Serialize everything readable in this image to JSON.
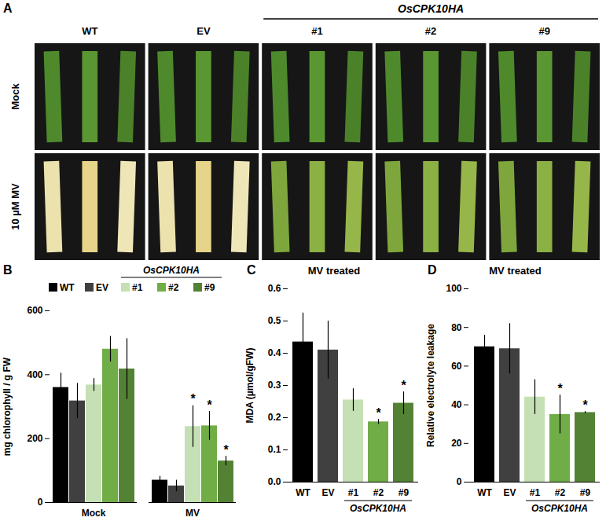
{
  "photo_panel": {
    "panel_label": "A",
    "columns": [
      "WT",
      "EV",
      "#1",
      "#2",
      "#9"
    ],
    "group": {
      "label": "OsCPK10HA",
      "members": [
        "#1",
        "#2",
        "#9"
      ]
    },
    "rows": [
      "Mock",
      "10 µM MV"
    ]
  },
  "chart_data": [
    {
      "panel_label": "B",
      "type": "bar",
      "categories": [
        "Mock",
        "MV"
      ],
      "series": [
        {
          "name": "WT",
          "color": "#000000",
          "values": [
            360,
            70
          ],
          "errors": [
            45,
            12
          ]
        },
        {
          "name": "EV",
          "color": "#404040",
          "values": [
            318,
            52
          ],
          "errors": [
            55,
            18
          ]
        },
        {
          "name": "#1",
          "color": "#c5e0b4",
          "values": [
            368,
            238
          ],
          "errors": [
            20,
            65
          ]
        },
        {
          "name": "#2",
          "color": "#70ad47",
          "values": [
            480,
            240
          ],
          "errors": [
            40,
            45
          ]
        },
        {
          "name": "#9",
          "color": "#548235",
          "values": [
            418,
            130
          ],
          "errors": [
            95,
            15
          ]
        }
      ],
      "group": {
        "label": "OsCPK10HA",
        "members": [
          "#1",
          "#2",
          "#9"
        ]
      },
      "ylabel": "mg chlorophyll / g FW",
      "ylim": [
        0,
        600
      ],
      "yticks": [
        0,
        200,
        400,
        600
      ],
      "grid": false,
      "legend": "top",
      "annotations": [
        {
          "category": "MV",
          "series": "#1",
          "text": "*"
        },
        {
          "category": "MV",
          "series": "#2",
          "text": "*"
        },
        {
          "category": "MV",
          "series": "#9",
          "text": "*"
        }
      ]
    },
    {
      "panel_label": "C",
      "type": "bar",
      "title": "MV treated",
      "categories": [
        "WT",
        "EV",
        "#1",
        "#2",
        "#9"
      ],
      "values": [
        0.435,
        0.41,
        0.255,
        0.187,
        0.245
      ],
      "errors": [
        0.09,
        0.09,
        0.035,
        0.008,
        0.035
      ],
      "colors": [
        "#000000",
        "#404040",
        "#c5e0b4",
        "#70ad47",
        "#548235"
      ],
      "group": {
        "label": "OsCPK10HA",
        "members": [
          "#1",
          "#2",
          "#9"
        ]
      },
      "ylabel": "MDA (µmol/gFW)",
      "ylim": [
        0,
        0.6
      ],
      "yticks": [
        {
          "value": 0,
          "label": "0.0"
        },
        0.1,
        0.2,
        0.3,
        0.4,
        0.5,
        0.6
      ],
      "grid": false,
      "annotations": [
        {
          "category": "#2",
          "text": "*"
        },
        {
          "category": "#9",
          "text": "*"
        }
      ]
    },
    {
      "panel_label": "D",
      "type": "bar",
      "title": "MV treated",
      "categories": [
        "WT",
        "EV",
        "#1",
        "#2",
        "#9"
      ],
      "values": [
        70,
        69,
        44,
        35,
        36
      ],
      "errors": [
        6,
        13,
        9,
        10,
        0.5
      ],
      "colors": [
        "#000000",
        "#404040",
        "#c5e0b4",
        "#70ad47",
        "#548235"
      ],
      "group": {
        "label": "OsCPK10HA",
        "members": [
          "#1",
          "#2",
          "#9"
        ]
      },
      "ylabel": "Relative electrolyte leakage",
      "ylim": [
        0,
        100
      ],
      "yticks": [
        0,
        20,
        40,
        60,
        80,
        100
      ],
      "grid": false,
      "annotations": [
        {
          "category": "#2",
          "text": "*"
        },
        {
          "category": "#9",
          "text": "*"
        }
      ]
    }
  ]
}
